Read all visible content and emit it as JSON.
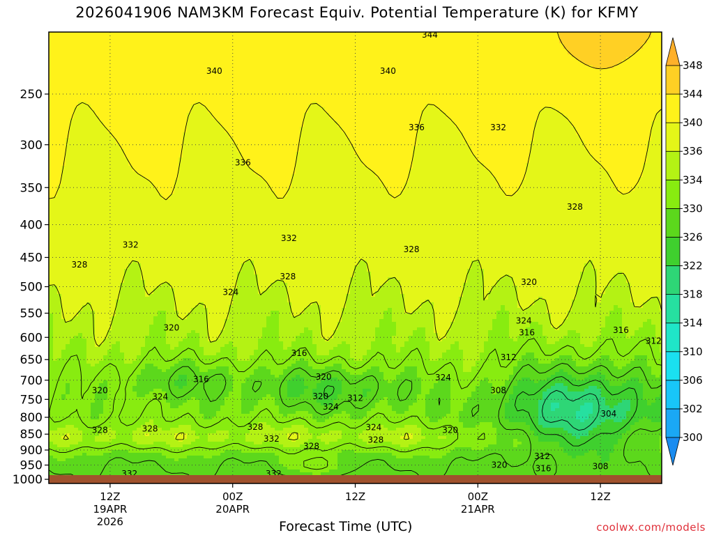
{
  "chart_data": {
    "type": "heatmap",
    "title": "2026041906 NAM3KM Forecast Equiv. Potential Temperature (K) for KFMY",
    "xlabel": "Forecast Time (UTC)",
    "ylabel": "",
    "credit": "coolwx.com/models",
    "y_scale": "log",
    "y_inverted": true,
    "ylim": [
      1015,
      200
    ],
    "y_ticks": [
      250,
      300,
      350,
      400,
      450,
      500,
      550,
      600,
      650,
      700,
      750,
      800,
      850,
      900,
      950,
      1000
    ],
    "x_ticks": [
      {
        "hour": 6,
        "lines": [
          "12Z",
          "19APR",
          "2026"
        ]
      },
      {
        "hour": 18,
        "lines": [
          "00Z",
          "20APR"
        ]
      },
      {
        "hour": 30,
        "lines": [
          "12Z"
        ]
      },
      {
        "hour": 42,
        "lines": [
          "00Z",
          "21APR"
        ]
      },
      {
        "hour": 54,
        "lines": [
          "12Z"
        ]
      }
    ],
    "xlim": [
      0,
      60
    ],
    "grid": true,
    "colorbar": {
      "levels": [
        300,
        302,
        306,
        310,
        314,
        318,
        322,
        326,
        330,
        334,
        336,
        340,
        344,
        348
      ],
      "labels": [
        "300",
        "302",
        "306",
        "310",
        "314",
        "318",
        "322",
        "326",
        "330",
        "334",
        "336",
        "340",
        "344",
        "348"
      ],
      "colors": [
        "#1a8cf0",
        "#1aa8f5",
        "#18c6f8",
        "#1ae0f0",
        "#1fe6c8",
        "#26e0a0",
        "#2ed676",
        "#3fd02e",
        "#5cd81c",
        "#88ec10",
        "#b4f214",
        "#e4f618",
        "#fff21a",
        "#ffd024",
        "#ffb02a"
      ]
    },
    "contour_labels": [
      {
        "t": 37.3,
        "p": 202,
        "v": "344"
      },
      {
        "t": 16.2,
        "p": 230,
        "v": "340"
      },
      {
        "t": 33.2,
        "p": 230,
        "v": "340"
      },
      {
        "t": 36.0,
        "p": 282,
        "v": "336"
      },
      {
        "t": 44.0,
        "p": 282,
        "v": "332"
      },
      {
        "t": 19.0,
        "p": 320,
        "v": "336"
      },
      {
        "t": 51.5,
        "p": 375,
        "v": "328"
      },
      {
        "t": 8.0,
        "p": 430,
        "v": "332"
      },
      {
        "t": 23.5,
        "p": 420,
        "v": "332"
      },
      {
        "t": 35.5,
        "p": 437,
        "v": "328"
      },
      {
        "t": 3.0,
        "p": 462,
        "v": "328"
      },
      {
        "t": 23.4,
        "p": 482,
        "v": "328"
      },
      {
        "t": 47.0,
        "p": 492,
        "v": "320"
      },
      {
        "t": 17.8,
        "p": 510,
        "v": "324"
      },
      {
        "t": 12.0,
        "p": 580,
        "v": "320"
      },
      {
        "t": 46.5,
        "p": 565,
        "v": "324"
      },
      {
        "t": 46.8,
        "p": 590,
        "v": "316"
      },
      {
        "t": 56.0,
        "p": 585,
        "v": "316"
      },
      {
        "t": 59.2,
        "p": 608,
        "v": "312"
      },
      {
        "t": 24.5,
        "p": 635,
        "v": "316"
      },
      {
        "t": 45.0,
        "p": 645,
        "v": "312"
      },
      {
        "t": 14.9,
        "p": 698,
        "v": "316"
      },
      {
        "t": 26.9,
        "p": 692,
        "v": "320"
      },
      {
        "t": 38.6,
        "p": 693,
        "v": "324"
      },
      {
        "t": 5.0,
        "p": 726,
        "v": "320"
      },
      {
        "t": 44.0,
        "p": 726,
        "v": "308"
      },
      {
        "t": 26.6,
        "p": 742,
        "v": "320"
      },
      {
        "t": 30.0,
        "p": 747,
        "v": "312"
      },
      {
        "t": 10.9,
        "p": 743,
        "v": "324"
      },
      {
        "t": 27.6,
        "p": 770,
        "v": "324"
      },
      {
        "t": 54.8,
        "p": 790,
        "v": "304"
      },
      {
        "t": 5.0,
        "p": 838,
        "v": "328"
      },
      {
        "t": 9.9,
        "p": 834,
        "v": "328"
      },
      {
        "t": 20.2,
        "p": 828,
        "v": "328"
      },
      {
        "t": 31.8,
        "p": 830,
        "v": "324"
      },
      {
        "t": 39.3,
        "p": 838,
        "v": "320"
      },
      {
        "t": 21.8,
        "p": 865,
        "v": "332"
      },
      {
        "t": 32.0,
        "p": 868,
        "v": "328"
      },
      {
        "t": 25.7,
        "p": 888,
        "v": "328"
      },
      {
        "t": 48.3,
        "p": 920,
        "v": "312"
      },
      {
        "t": 44.1,
        "p": 950,
        "v": "320"
      },
      {
        "t": 48.4,
        "p": 962,
        "v": "316"
      },
      {
        "t": 54.0,
        "p": 955,
        "v": "308"
      },
      {
        "t": 7.9,
        "p": 980,
        "v": "332"
      },
      {
        "t": 22.0,
        "p": 980,
        "v": "332"
      }
    ]
  }
}
